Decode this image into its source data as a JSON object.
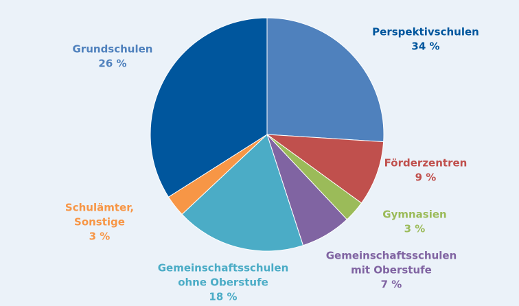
{
  "chart_data": {
    "type": "pie",
    "categories": [
      [
        "Grundschulen"
      ],
      [
        "Förderzentren"
      ],
      [
        "Gymnasien"
      ],
      [
        "Gemeinschaftsschulen",
        "mit Oberstufe"
      ],
      [
        "Gemeinschaftsschulen",
        "ohne Oberstufe"
      ],
      [
        "Schulämter,",
        "Sonstige"
      ],
      [
        "Perspektivschulen"
      ]
    ],
    "values": [
      26,
      9,
      3,
      7,
      18,
      3,
      34
    ],
    "value_labels": [
      "26 %",
      "9 %",
      "3 %",
      "7 %",
      "18 %",
      "3 %",
      "34 %"
    ],
    "colors": [
      "#4f81bd",
      "#c0504d",
      "#9bbb59",
      "#8064a2",
      "#4bacc6",
      "#f79646",
      "#00569d"
    ]
  }
}
